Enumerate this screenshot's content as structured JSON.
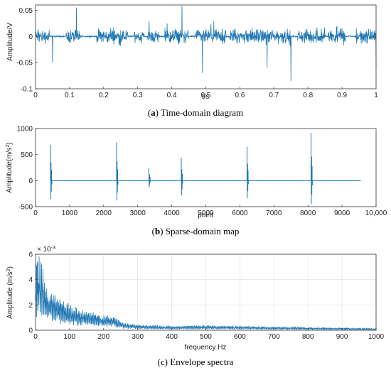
{
  "chart_data": [
    {
      "id": "a",
      "type": "line",
      "caption_letter": "a",
      "caption_text": " Time-domain diagram",
      "xlabel": "t/s",
      "ylabel": "Amplitude/V",
      "xlim": [
        0,
        1
      ],
      "ylim": [
        -0.1,
        0.06
      ],
      "xticks": [
        0,
        0.1,
        0.2,
        0.3,
        0.4,
        0.5,
        0.6,
        0.7,
        0.8,
        0.9,
        1
      ],
      "xtick_labels": [
        "0",
        "0.1",
        "0.2",
        "0.3",
        "0.4",
        "0.5",
        "0.6",
        "0.7",
        "0.8",
        "0.9",
        "1"
      ],
      "yticks": [
        -0.1,
        -0.05,
        0,
        0.05
      ],
      "ytick_labels": [
        "-0.1",
        "-0.05",
        "0",
        "0.05"
      ],
      "grid": false,
      "color": "#1f77b4",
      "series": [
        {
          "signal": "bursty vibration signal",
          "bursts": [
            [
              0.0,
              0.04
            ],
            [
              0.09,
              0.13
            ],
            [
              0.18,
              0.27
            ],
            [
              0.29,
              0.32
            ],
            [
              0.33,
              0.36
            ],
            [
              0.38,
              0.45
            ],
            [
              0.47,
              0.56
            ],
            [
              0.57,
              0.75
            ],
            [
              0.77,
              0.85
            ],
            [
              0.86,
              0.91
            ],
            [
              0.94,
              1.0
            ]
          ],
          "peaks": [
            [
              0.12,
              0.055
            ],
            [
              0.49,
              0.063
            ],
            [
              0.43,
              0.058
            ],
            [
              0.75,
              -0.085
            ],
            [
              0.49,
              -0.07
            ],
            [
              0.68,
              -0.06
            ],
            [
              0.05,
              -0.05
            ],
            [
              1.0,
              -0.06
            ]
          ]
        }
      ]
    },
    {
      "id": "b",
      "type": "line",
      "caption_letter": "b",
      "caption_text": " Sparse-domain map",
      "xlabel": "point",
      "ylabel_main": "Amplitude(m/s",
      "ylabel_sup": "2",
      "ylabel_close": ")",
      "xlim": [
        0,
        10000
      ],
      "ylim": [
        -500,
        1000
      ],
      "xticks": [
        0,
        1000,
        2000,
        3000,
        4000,
        5000,
        6000,
        7000,
        8000,
        9000,
        10000
      ],
      "xtick_labels": [
        "0",
        "1000",
        "2000",
        "3000",
        "4000",
        "5000",
        "6000",
        "7000",
        "8000",
        "9000",
        "10,000"
      ],
      "yticks": [
        -500,
        0,
        500,
        1000
      ],
      "ytick_labels": [
        "-500",
        "0",
        "500",
        "1000"
      ],
      "grid": false,
      "color": "#1f77b4",
      "baseline_end": 9550,
      "spikes": [
        {
          "x": 460,
          "max": 690,
          "min": -350
        },
        {
          "x": 2400,
          "max": 730,
          "min": -380
        },
        {
          "x": 3350,
          "max": 240,
          "min": -130
        },
        {
          "x": 4300,
          "max": 440,
          "min": -280
        },
        {
          "x": 6230,
          "max": 650,
          "min": -340
        },
        {
          "x": 8110,
          "max": 920,
          "min": -450
        }
      ]
    },
    {
      "id": "c",
      "type": "line",
      "caption_letter": "",
      "caption_text": "(c) Envelope spectra",
      "xlabel": "frequency Hz",
      "ylabel_main": "Amplitude (m/s",
      "ylabel_sup": "2",
      "ylabel_close": ")",
      "exponent_label": "× 10",
      "exponent_power": "-3",
      "xlim": [
        0,
        1000
      ],
      "ylim": [
        0,
        6
      ],
      "xticks": [
        0,
        100,
        200,
        300,
        400,
        500,
        600,
        700,
        800,
        900,
        1000
      ],
      "xtick_labels": [
        "0",
        "100",
        "200",
        "300",
        "400",
        "500",
        "600",
        "700",
        "800",
        "900",
        "1000"
      ],
      "yticks": [
        0,
        2,
        4,
        6
      ],
      "ytick_labels": [
        "0",
        "2",
        "4",
        "6"
      ],
      "grid": true,
      "color": "#1f77b4",
      "envelope": [
        [
          0,
          4.2
        ],
        [
          10,
          5.1
        ],
        [
          30,
          3.6
        ],
        [
          60,
          2.9
        ],
        [
          100,
          2.1
        ],
        [
          150,
          1.6
        ],
        [
          200,
          1.3
        ],
        [
          230,
          1.1
        ],
        [
          260,
          0.6
        ],
        [
          300,
          0.45
        ],
        [
          400,
          0.35
        ],
        [
          500,
          0.4
        ],
        [
          600,
          0.35
        ],
        [
          700,
          0.3
        ],
        [
          800,
          0.25
        ],
        [
          900,
          0.2
        ],
        [
          1000,
          0.15
        ]
      ]
    }
  ]
}
